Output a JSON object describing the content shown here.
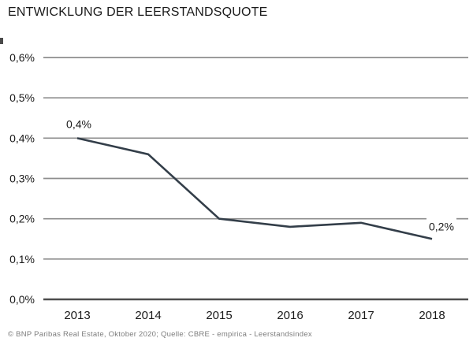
{
  "title": "ENTWICKLUNG DER LEERSTANDSQUOTE",
  "footer": "© BNP Paribas Real Estate, Oktober 2020; Quelle: CBRE - empirica - Leerstandsindex",
  "chart_data": {
    "type": "line",
    "title": "ENTWICKLUNG DER LEERSTANDSQUOTE",
    "categories": [
      "2013",
      "2014",
      "2015",
      "2016",
      "2017",
      "2018"
    ],
    "series": [
      {
        "name": "Leerstandsquote",
        "values": [
          0.4,
          0.36,
          0.2,
          0.18,
          0.19,
          0.15
        ]
      }
    ],
    "xlabel": "",
    "ylabel": "",
    "unit": "%",
    "ylim": [
      0.0,
      0.6
    ],
    "ytick_values": [
      0.0,
      0.1,
      0.2,
      0.3,
      0.4,
      0.5,
      0.6
    ],
    "ytick_labels": [
      "0,0%",
      "0,1%",
      "0,2%",
      "0,3%",
      "0,4%",
      "0,5%",
      "0,6%"
    ],
    "grid": "horizontal",
    "legend": "none",
    "point_labels": [
      {
        "category": "2013",
        "text": "0,4%",
        "placement": "above"
      },
      {
        "category": "2018",
        "text": "0,2%",
        "placement": "right"
      }
    ],
    "colors": {
      "line": "#333e49",
      "grid": "#8d8d8d",
      "axis": "#4d4d4d",
      "text": "#1a1a1a",
      "footer_text": "#7d7d7d"
    }
  }
}
